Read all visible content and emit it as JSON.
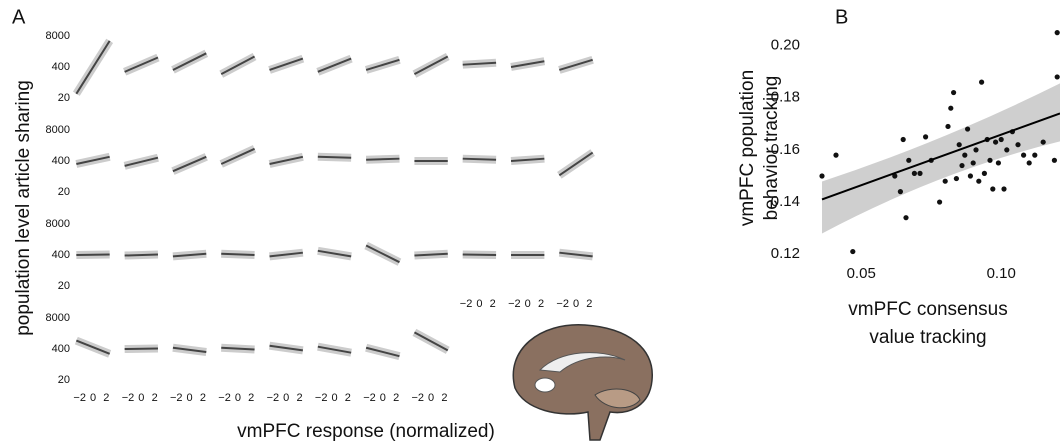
{
  "chart_data": [
    {
      "type": "small-multiples",
      "label": "A",
      "y_label": "population level article sharing",
      "x_label": "vmPFC response (normalized)",
      "yscale": "log",
      "xlim": [
        -3,
        3
      ],
      "ylim": [
        10,
        17000
      ],
      "xticks": [
        {
          "value": -2,
          "label": "−2"
        },
        0,
        2
      ],
      "yticks": [
        20,
        400,
        8000
      ],
      "fit_x": [
        -2.5,
        2.5
      ],
      "rows": [
        {
          "fits": [
            [
              30,
              5000
            ],
            [
              250,
              1000
            ],
            [
              300,
              1500
            ],
            [
              200,
              1100
            ],
            [
              300,
              900
            ],
            [
              250,
              900
            ],
            [
              300,
              800
            ],
            [
              200,
              1100
            ],
            [
              500,
              600
            ],
            [
              400,
              700
            ],
            [
              300,
              800
            ]
          ]
        },
        {
          "fits": [
            [
              300,
              600
            ],
            [
              250,
              550
            ],
            [
              150,
              600
            ],
            [
              300,
              1300
            ],
            [
              300,
              600
            ],
            [
              600,
              550
            ],
            [
              450,
              500
            ],
            [
              400,
              400
            ],
            [
              500,
              450
            ],
            [
              400,
              500
            ],
            [
              100,
              900
            ]
          ]
        },
        {
          "fits": [
            [
              400,
              420
            ],
            [
              380,
              420
            ],
            [
              350,
              450
            ],
            [
              450,
              400
            ],
            [
              350,
              500
            ],
            [
              600,
              350
            ],
            [
              1000,
              200
            ],
            [
              380,
              450
            ],
            [
              420,
              400
            ],
            [
              400,
              400
            ],
            [
              500,
              350
            ]
          ]
        },
        {
          "fits": [
            [
              900,
              250
            ],
            [
              400,
              420
            ],
            [
              450,
              300
            ],
            [
              450,
              380
            ],
            [
              550,
              350
            ],
            [
              500,
              280
            ],
            [
              450,
              200
            ],
            [
              2000,
              350
            ]
          ]
        }
      ]
    },
    {
      "type": "scatter",
      "label": "B",
      "y_label": [
        "vmPFC population",
        "behavior tracking"
      ],
      "x_label": [
        "vmPFC consensus",
        "value tracking"
      ],
      "xlim": [
        0.036,
        0.121
      ],
      "ylim": [
        0.117,
        0.206
      ],
      "xticks": [
        0.05,
        {
          "value": 0.1,
          "label": "0.10"
        }
      ],
      "yticks": [
        0.12,
        0.14,
        0.16,
        0.18,
        {
          "value": 0.2,
          "label": "0.20"
        }
      ],
      "x": [
        0.036,
        0.041,
        0.047,
        0.062,
        0.064,
        0.065,
        0.066,
        0.067,
        0.069,
        0.071,
        0.073,
        0.075,
        0.078,
        0.08,
        0.081,
        0.082,
        0.083,
        0.084,
        0.085,
        0.086,
        0.087,
        0.088,
        0.089,
        0.09,
        0.091,
        0.092,
        0.093,
        0.094,
        0.095,
        0.096,
        0.097,
        0.098,
        0.099,
        0.1,
        0.101,
        0.102,
        0.104,
        0.106,
        0.108,
        0.11,
        0.112,
        0.115,
        0.119,
        0.12,
        0.12
      ],
      "y": [
        0.15,
        0.158,
        0.121,
        0.15,
        0.144,
        0.164,
        0.134,
        0.156,
        0.151,
        0.151,
        0.165,
        0.156,
        0.14,
        0.148,
        0.169,
        0.176,
        0.182,
        0.149,
        0.162,
        0.154,
        0.158,
        0.168,
        0.15,
        0.155,
        0.16,
        0.148,
        0.186,
        0.151,
        0.164,
        0.156,
        0.145,
        0.163,
        0.155,
        0.164,
        0.145,
        0.16,
        0.167,
        0.162,
        0.158,
        0.155,
        0.158,
        0.163,
        0.156,
        0.188,
        0.205
      ],
      "fit": {
        "x": [
          0.036,
          0.121
        ],
        "y": [
          0.141,
          0.174
        ]
      }
    }
  ]
}
